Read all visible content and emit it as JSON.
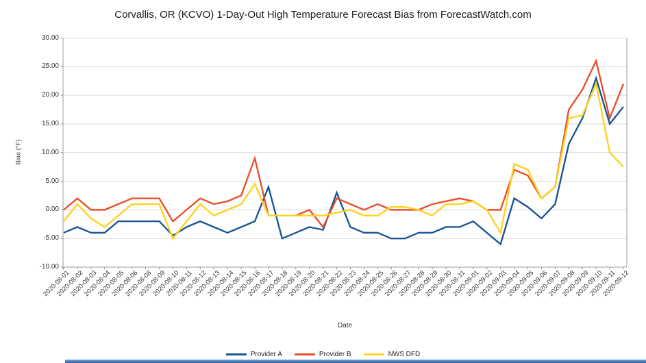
{
  "page": {
    "background": "#ffffff"
  },
  "chart_data": {
    "type": "line",
    "title": "Corvallis, OR (KCVO) 1-Day-Out High Temperature Forecast Bias from ForecastWatch.com",
    "xlabel": "Date",
    "ylabel": "Bias (°F)",
    "ylim": [
      -10,
      30
    ],
    "ytick_step": 5,
    "ytick_labels": [
      "30.00",
      "25.00",
      "20.00",
      "15.00",
      "10.00",
      "5.00",
      "0.00",
      "-5.00",
      "-10.00"
    ],
    "grid": true,
    "legend_position": "bottom",
    "colors": {
      "grid": "#d9d9d9",
      "axis": "#999999",
      "tick_text": "#333333"
    },
    "categories": [
      "2020-08-01",
      "2020-08-02",
      "2020-08-03",
      "2020-08-04",
      "2020-08-05",
      "2020-08-06",
      "2020-08-08",
      "2020-08-09",
      "2020-08-10",
      "2020-08-11",
      "2020-08-12",
      "2020-08-13",
      "2020-08-14",
      "2020-08-15",
      "2020-08-16",
      "2020-08-17",
      "2020-08-18",
      "2020-08-19",
      "2020-08-20",
      "2020-08-21",
      "2020-08-22",
      "2020-08-23",
      "2020-08-24",
      "2020-08-25",
      "2020-08-26",
      "2020-08-27",
      "2020-08-28",
      "2020-08-29",
      "2020-08-30",
      "2020-08-31",
      "2020-09-01",
      "2020-09-02",
      "2020-09-03",
      "2020-09-04",
      "2020-09-05",
      "2020-09-06",
      "2020-09-07",
      "2020-09-08",
      "2020-09-09",
      "2020-09-10",
      "2020-09-11",
      "2020-09-12"
    ],
    "series": [
      {
        "name": "Provider A",
        "color": "#1b5694",
        "values": [
          -4,
          -3,
          -4,
          -4,
          -2,
          -2,
          -2,
          -2,
          -4.5,
          -3,
          -2,
          -3,
          -4,
          -3,
          -2,
          4,
          -5,
          -4,
          -3,
          -3.5,
          3,
          -3,
          -4,
          -4,
          -5,
          -5,
          -4,
          -4,
          -3,
          -3,
          -2,
          -4,
          -6,
          2,
          0.5,
          -1.5,
          1,
          11.5,
          16,
          23,
          15,
          18
        ]
      },
      {
        "name": "Provider B",
        "color": "#e8502d",
        "values": [
          0,
          2,
          0,
          0,
          1,
          2,
          2,
          2,
          -2,
          0,
          2,
          1,
          1.5,
          2.5,
          9,
          -1,
          -1,
          -1,
          0,
          -3,
          2,
          1,
          0,
          1,
          0,
          0,
          0,
          1,
          1.5,
          2,
          1.5,
          0,
          0,
          7,
          6,
          2,
          4,
          17.5,
          21,
          26,
          16,
          22
        ]
      },
      {
        "name": "NWS DFD",
        "color": "#ffd320",
        "values": [
          -2,
          1,
          -1.5,
          -3,
          -1,
          1,
          1,
          1,
          -5,
          -2,
          1,
          -1,
          0,
          1,
          4.5,
          -1,
          -1,
          -1,
          -1,
          -1,
          -0.5,
          0,
          -1,
          -1,
          0.5,
          0.5,
          0,
          -1,
          1,
          1,
          1.5,
          0,
          -4,
          8,
          7,
          2,
          4,
          16,
          16.5,
          22,
          10,
          7.5
        ]
      }
    ]
  },
  "footer": {
    "strip_color": "#3a6ea5"
  }
}
